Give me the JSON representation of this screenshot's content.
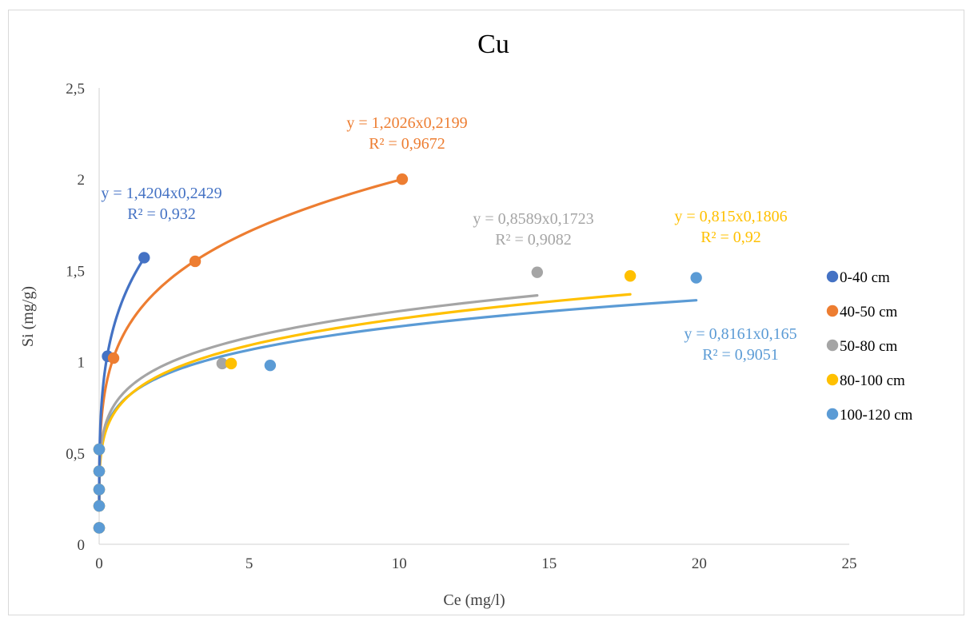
{
  "chart_data": {
    "type": "scatter",
    "title": "Cu",
    "xlabel": "Ce (mg/l)",
    "ylabel": "Si (mg/g)",
    "xlim": [
      0,
      25
    ],
    "ylim": [
      0,
      2.5
    ],
    "x_ticks": [
      "0",
      "5",
      "10",
      "15",
      "20",
      "25"
    ],
    "y_ticks": [
      "0",
      "0,5",
      "1",
      "1,5",
      "2",
      "2,5"
    ],
    "grid": false,
    "legend_position": "right",
    "series": [
      {
        "name": "0-40 cm",
        "color": "#4472c4",
        "points": [
          [
            0,
            0.09
          ],
          [
            0,
            0.21
          ],
          [
            0,
            0.3
          ],
          [
            0,
            0.4
          ],
          [
            0,
            0.52
          ],
          [
            0.28,
            1.03
          ],
          [
            1.5,
            1.57
          ]
        ],
        "trendline": {
          "a": 1.4204,
          "b": 0.2429,
          "x_end": 1.5
        },
        "equation": "y = 1,4204x0,2429",
        "r2": "R² = 0,932"
      },
      {
        "name": "40-50 cm",
        "color": "#ed7d31",
        "points": [
          [
            0,
            0.09
          ],
          [
            0,
            0.21
          ],
          [
            0,
            0.3
          ],
          [
            0,
            0.4
          ],
          [
            0,
            0.52
          ],
          [
            0.48,
            1.02
          ],
          [
            3.2,
            1.55
          ],
          [
            10.1,
            2.0
          ]
        ],
        "trendline": {
          "a": 1.2026,
          "b": 0.2199,
          "x_end": 10.1
        },
        "equation": "y = 1,2026x0,2199",
        "r2": "R² = 0,9672"
      },
      {
        "name": "50-80 cm",
        "color": "#a5a5a5",
        "points": [
          [
            0,
            0.09
          ],
          [
            0,
            0.21
          ],
          [
            0,
            0.3
          ],
          [
            0,
            0.4
          ],
          [
            0,
            0.52
          ],
          [
            4.1,
            0.99
          ],
          [
            14.6,
            1.49
          ]
        ],
        "trendline": {
          "a": 0.8589,
          "b": 0.1723,
          "x_end": 14.6
        },
        "equation": "y = 0,8589x0,1723",
        "r2": "R² = 0,9082"
      },
      {
        "name": "80-100 cm",
        "color": "#ffc000",
        "points": [
          [
            0,
            0.09
          ],
          [
            0,
            0.21
          ],
          [
            0,
            0.3
          ],
          [
            0,
            0.4
          ],
          [
            0,
            0.52
          ],
          [
            4.4,
            0.99
          ],
          [
            17.7,
            1.47
          ]
        ],
        "trendline": {
          "a": 0.815,
          "b": 0.1806,
          "x_end": 17.7
        },
        "equation": "y = 0,815x0,1806",
        "r2": "R² = 0,92"
      },
      {
        "name": "100-120 cm",
        "color": "#5b9bd5",
        "points": [
          [
            0,
            0.09
          ],
          [
            0,
            0.21
          ],
          [
            0,
            0.3
          ],
          [
            0,
            0.4
          ],
          [
            0,
            0.52
          ],
          [
            5.7,
            0.98
          ],
          [
            19.9,
            1.46
          ]
        ],
        "trendline": {
          "a": 0.8161,
          "b": 0.165,
          "x_end": 19.9
        },
        "equation": "y = 0,8161x0,165",
        "r2": "R² = 0,9051"
      }
    ]
  }
}
